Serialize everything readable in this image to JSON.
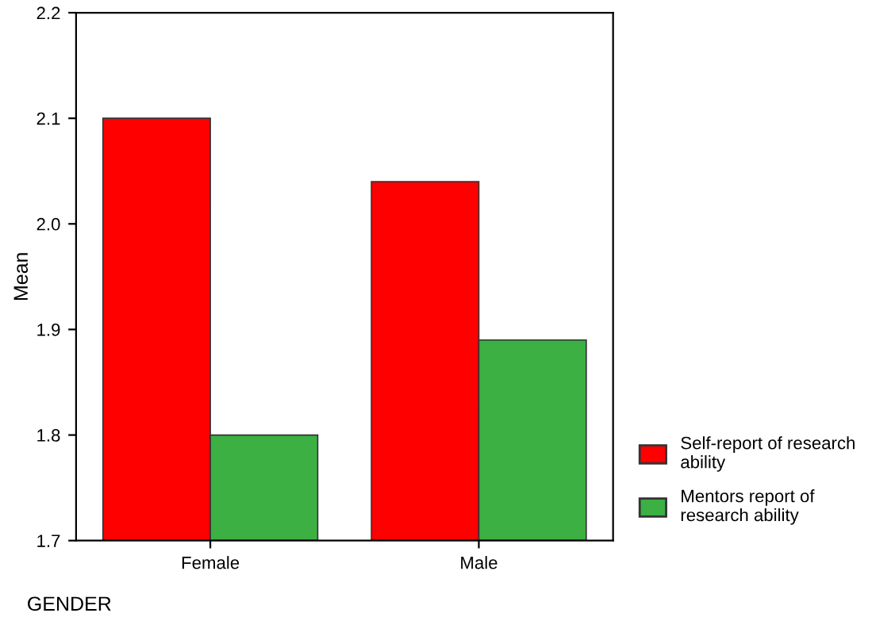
{
  "chart_data": {
    "type": "bar",
    "xlabel": "GENDER",
    "ylabel": "Mean",
    "categories": [
      "Female",
      "Male"
    ],
    "series": [
      {
        "name": "Self-report of research ability",
        "color": "#ff0000",
        "values": [
          2.1,
          2.04
        ]
      },
      {
        "name": "Mentors report of research ability",
        "color": "#3cb043",
        "values": [
          1.8,
          1.89
        ]
      }
    ],
    "ylim": [
      1.7,
      2.2
    ],
    "yticks": [
      1.7,
      1.8,
      1.9,
      {
        "value": 2.0,
        "label": "2.0"
      },
      2.1,
      2.2
    ],
    "grid": false,
    "legend": "bottom right"
  }
}
